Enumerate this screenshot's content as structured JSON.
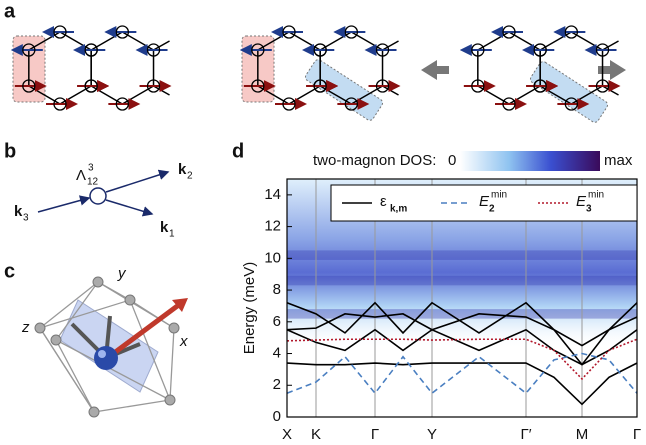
{
  "panels": {
    "a": {
      "label": "a"
    },
    "b": {
      "label": "b",
      "vertex": {
        "symbol": "Λ",
        "sup": "3",
        "sub": "12"
      },
      "momenta": [
        {
          "k": "k",
          "sub": "3"
        },
        {
          "k": "k",
          "sub": "2"
        },
        {
          "k": "k",
          "sub": "1"
        }
      ]
    },
    "c": {
      "label": "c",
      "axes": [
        "y",
        "z",
        "x"
      ]
    }
  },
  "chart_data": {
    "type": "line",
    "panel_label": "d",
    "colorbar": {
      "label": "two-magnon DOS:",
      "min_label": "0",
      "max_label": "max"
    },
    "ylabel": "Energy (meV)",
    "x": [
      0,
      29,
      58,
      88,
      116,
      145,
      192,
      239,
      267,
      295,
      322,
      350
    ],
    "xlim": [
      0,
      350
    ],
    "xticks": [
      {
        "value": 0,
        "label": "X"
      },
      {
        "value": 29,
        "label": "K"
      },
      {
        "value": 88,
        "label": "Γ"
      },
      {
        "value": 145,
        "label": "Y"
      },
      {
        "value": 239,
        "label": "Γ′"
      },
      {
        "value": 295,
        "label": "M"
      },
      {
        "value": 350,
        "label": "Γ"
      }
    ],
    "ylim": [
      0,
      15
    ],
    "yticks": [
      0,
      2,
      4,
      6,
      8,
      10,
      12,
      14
    ],
    "series": [
      {
        "name": "ε",
        "name_sub": "k,m",
        "color": "#000000",
        "dash": "solid",
        "bands": [
          [
            3.4,
            3.3,
            3.3,
            3.4,
            3.3,
            3.4,
            3.4,
            3.4,
            2.5,
            0.8,
            2.5,
            3.4
          ],
          [
            5.5,
            4.7,
            4.2,
            5.5,
            4.2,
            5.5,
            4.2,
            5.5,
            4.2,
            3.3,
            4.2,
            5.5
          ],
          [
            5.5,
            5.6,
            6.5,
            6.3,
            6.5,
            5.5,
            6.5,
            6.3,
            5.5,
            3.3,
            5.5,
            6.3
          ],
          [
            7.2,
            6.5,
            5.3,
            7.2,
            5.3,
            7.2,
            5.3,
            7.2,
            5.5,
            4.5,
            5.5,
            7.2
          ]
        ]
      },
      {
        "name": "E",
        "name_sup": "min",
        "name_sub": "2",
        "color": "#4a7fc1",
        "dash": "dashed",
        "values": [
          1.5,
          2.2,
          3.8,
          1.5,
          3.8,
          1.5,
          3.8,
          1.5,
          3.6,
          4.0,
          3.6,
          1.5
        ]
      },
      {
        "name": "E",
        "name_sup": "min",
        "name_sub": "3",
        "color": "#b2182b",
        "dash": "dotted",
        "values": [
          4.8,
          4.85,
          4.9,
          4.9,
          4.9,
          4.85,
          4.9,
          4.9,
          4.2,
          2.4,
          4.2,
          4.9
        ]
      }
    ]
  }
}
